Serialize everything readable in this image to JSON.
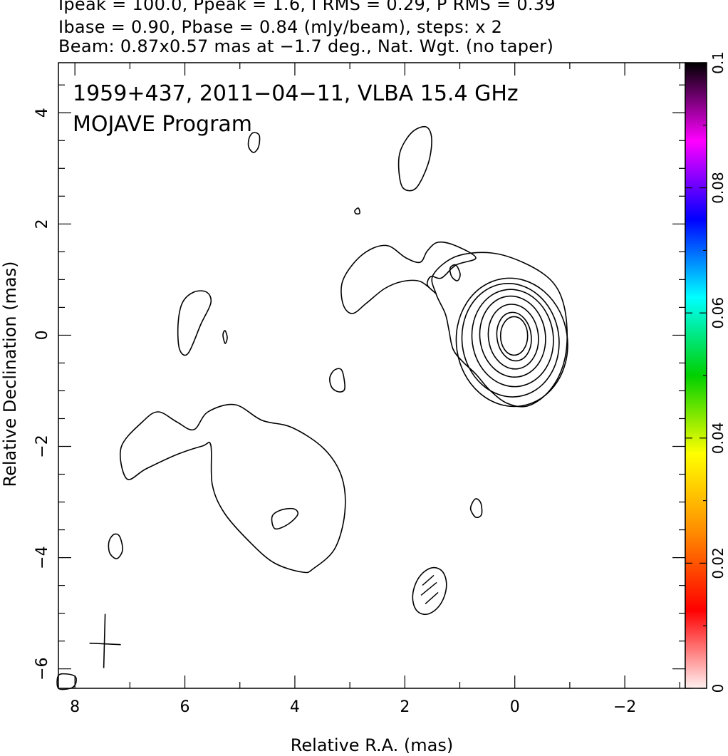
{
  "header": {
    "line1": "Ipeak = 100.0, Ppeak = 1.6, I RMS = 0.29, P RMS = 0.39",
    "line2": "Ibase = 0.90, Pbase = 0.84 (mJy/beam), steps: x 2",
    "line3": "Beam: 0.87x0.57 mas at −1.7 deg., Nat. Wgt. (no taper)"
  },
  "chart_data": {
    "type": "contour",
    "title": "1959+437, 2011−04−11, VLBA 15.4 GHz",
    "subtitle": "MOJAVE Program",
    "xlabel": "Relative R.A. (mas)",
    "ylabel": "Relative Declination (mas)",
    "xlim": [
      8.3,
      -3.1
    ],
    "ylim": [
      -6.35,
      4.9
    ],
    "x_ticks": [
      8,
      6,
      4,
      2,
      0,
      -2
    ],
    "x_tick_labels": [
      "8",
      "6",
      "4",
      "2",
      "0",
      "−2"
    ],
    "y_ticks": [
      4,
      2,
      0,
      -2,
      -4,
      -6
    ],
    "y_tick_labels": [
      "4",
      "2",
      "0",
      "−2",
      "−4",
      "−6"
    ],
    "colorbar": {
      "min": 0,
      "max": 0.1,
      "ticks": [
        0,
        0.02,
        0.04,
        0.06,
        0.08,
        0.1
      ],
      "tick_labels": [
        "0",
        "0.02",
        "0.04",
        "0.06",
        "0.08",
        "0.1"
      ],
      "stops": [
        "#fff0f0",
        "#ff0000",
        "#ff8c00",
        "#ffff00",
        "#00d000",
        "#00ffff",
        "#0000ff",
        "#ff00ff",
        "#000000"
      ]
    },
    "contour_levels_mJy_per_beam": [
      0.9,
      1.8,
      3.6,
      7.2,
      14.4,
      28.8,
      57.6
    ],
    "peak_mJy_per_beam": 100.0,
    "core": {
      "x": 0,
      "y": 0
    },
    "beam": {
      "major_mas": 0.87,
      "minor_mas": 0.57,
      "pa_deg": -1.7,
      "x": 1.55,
      "y": -4.6
    },
    "reference_cross": {
      "x": 7.45,
      "y": -5.5
    }
  }
}
